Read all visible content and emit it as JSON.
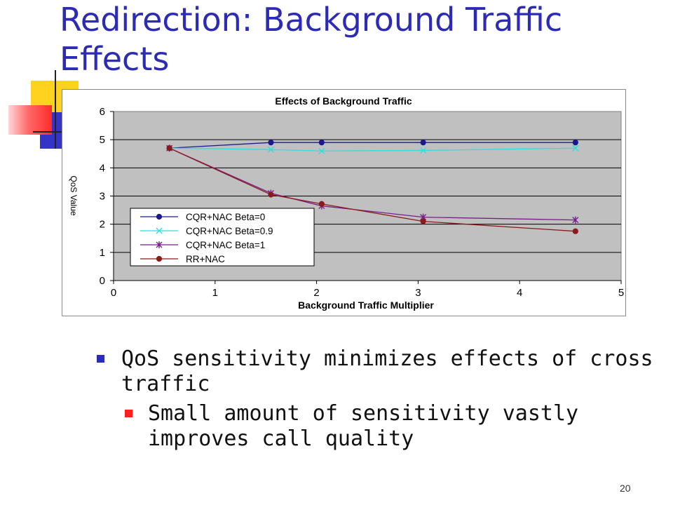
{
  "slide": {
    "title": "Redirection: Background Traffic Effects",
    "page_number": "20",
    "bullets": [
      {
        "text": "QoS sensitivity minimizes effects of cross traffic",
        "sub": [
          "Small amount of sensitivity vastly improves call quality"
        ]
      }
    ]
  },
  "colors": {
    "title": "#2b2bb5",
    "plot_background": "#c0c0c0",
    "bullet_level1": "#2b2bb5",
    "bullet_level2": "#ff1f1f"
  },
  "chart_data": {
    "type": "line",
    "title": "Effects of Background Traffic",
    "xlabel": "Background Traffic Multiplier",
    "ylabel": "QoS Value",
    "xlim": [
      0,
      5
    ],
    "ylim": [
      0,
      6
    ],
    "xticks": [
      0,
      1,
      2,
      3,
      4,
      5
    ],
    "yticks": [
      0,
      1,
      2,
      3,
      4,
      5,
      6
    ],
    "grid": "horizontal",
    "legend_position": "lower-left",
    "x": [
      0.55,
      1.55,
      2.05,
      3.05,
      4.55
    ],
    "series": [
      {
        "name": "CQR+NAC Beta=0",
        "values": [
          4.7,
          4.9,
          4.9,
          4.9,
          4.9
        ],
        "color": "#1a1a8c",
        "marker": "dot"
      },
      {
        "name": "CQR+NAC Beta=0.9",
        "values": [
          4.7,
          4.65,
          4.6,
          4.62,
          4.7
        ],
        "color": "#33dddd",
        "marker": "x"
      },
      {
        "name": "CQR+NAC Beta=1",
        "values": [
          4.7,
          3.1,
          2.65,
          2.25,
          2.15
        ],
        "color": "#7a1f8a",
        "marker": "star"
      },
      {
        "name": "RR+NAC",
        "values": [
          4.7,
          3.05,
          2.72,
          2.1,
          1.75
        ],
        "color": "#8b1a1a",
        "marker": "dot"
      }
    ]
  }
}
